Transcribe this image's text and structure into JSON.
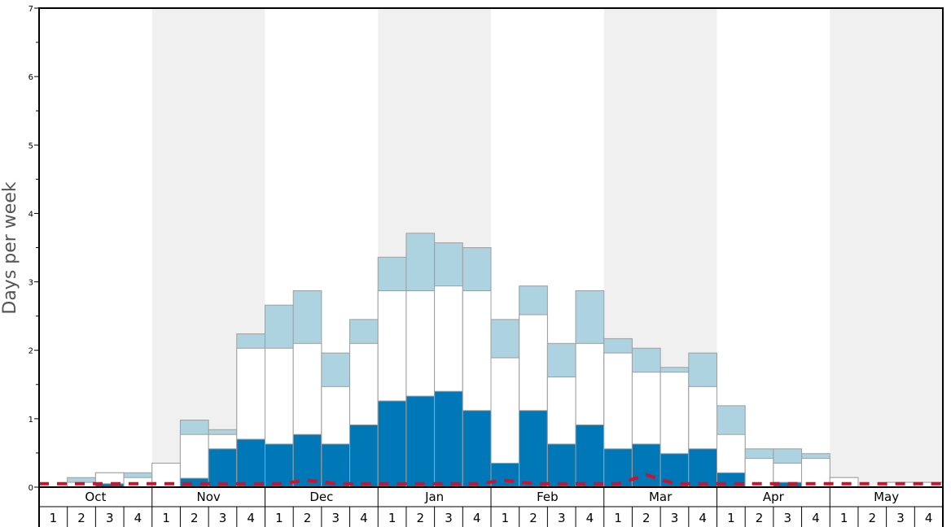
{
  "chart_data": {
    "type": "bar",
    "ylabel": "Days per week",
    "ylim": [
      0,
      7
    ],
    "y_ticks": [
      0,
      1,
      2,
      3,
      4,
      5,
      6,
      7
    ],
    "months": [
      "Oct",
      "Nov",
      "Dec",
      "Jan",
      "Feb",
      "Mar",
      "Apr",
      "May"
    ],
    "weeks": [
      "1",
      "2",
      "3",
      "4"
    ],
    "alternate_month_shading": true,
    "colors": {
      "dark_segment": "#0077b6",
      "white_segment": "#ffffff",
      "light_segment": "#aed3e0",
      "bar_border": "#9e9e9e",
      "shaded_month": "#f0f0f0",
      "dashed_line": "#d0112b"
    },
    "series": [
      {
        "segment": "dark",
        "values": [
          0,
          0,
          0.05,
          0,
          0,
          0.13,
          0.56,
          0.7,
          0.63,
          0.77,
          0.63,
          0.91,
          1.26,
          1.33,
          1.4,
          1.12,
          0.35,
          1.12,
          0.63,
          0.91,
          0.56,
          0.63,
          0.49,
          0.56,
          0.21,
          0,
          0.07,
          0,
          0,
          0,
          0,
          0
        ]
      },
      {
        "segment": "white",
        "values": [
          0,
          0.07,
          0.21,
          0.14,
          0.35,
          0.77,
          0.77,
          2.03,
          2.03,
          2.1,
          1.47,
          2.1,
          2.87,
          2.87,
          2.94,
          2.87,
          1.89,
          2.52,
          1.61,
          2.1,
          1.96,
          1.68,
          1.68,
          1.47,
          0.77,
          0.42,
          0.35,
          0.42,
          0.14,
          0,
          0.07,
          0.07
        ]
      },
      {
        "segment": "light",
        "values": [
          0,
          0.14,
          0.21,
          0.21,
          0.35,
          0.98,
          0.84,
          2.24,
          2.66,
          2.87,
          1.96,
          2.45,
          3.36,
          3.71,
          3.57,
          3.5,
          2.45,
          2.94,
          2.1,
          2.87,
          2.17,
          2.03,
          1.75,
          1.96,
          1.19,
          0.56,
          0.56,
          0.49,
          0.14,
          0,
          0.07,
          0.07
        ]
      }
    ],
    "dashed_line": {
      "values": [
        0.05,
        0.05,
        0.05,
        0.05,
        0.05,
        0.05,
        0.05,
        0.05,
        0.05,
        0.1,
        0.05,
        0.05,
        0.05,
        0.05,
        0.05,
        0.05,
        0.1,
        0.05,
        0.05,
        0.05,
        0.05,
        0.18,
        0.05,
        0.05,
        0.05,
        0.05,
        0.05,
        0.05,
        0.05,
        0.05,
        0.05,
        0.05
      ]
    }
  }
}
